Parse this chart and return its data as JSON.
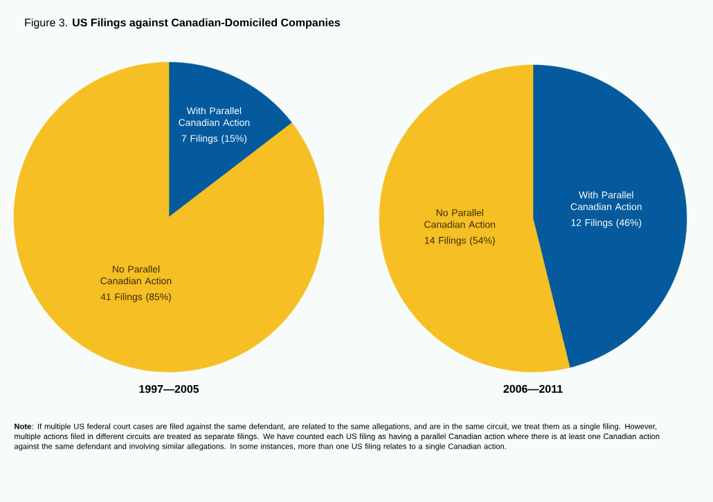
{
  "chart_data": [
    {
      "type": "pie",
      "title": "Figure 3.  **US Filings against Canadian-Domiciled Companies**",
      "xlabel": "1997—2005",
      "categories": [
        "With Parallel Canadian Action",
        "No Parallel Canadian Action"
      ],
      "values": [
        7,
        41
      ],
      "value_labels": [
        "7 Filings (15%)",
        "41 Filings (85%)"
      ],
      "colors": [
        "#045a9c",
        "#f6bf23"
      ],
      "annotations": [
        "**Note**: If multiple US federal court cases are filed against the same defendant, are related to the same allegations, and are in the same circuit, we treat them as a single filing. However, multiple actions filed in different circuits are treated as separate filings. We have counted each US filing as having a parallel Canadian action where there is at least one Canadian action against the same defendant and involving similar allegations. In some instances, more than one US filing relates to a single Canadian action."
      ]
    },
    {
      "type": "pie",
      "xlabel": "2006—2011",
      "categories": [
        "With Parallel Canadian Action",
        "No Parallel Canadian Action"
      ],
      "values": [
        12,
        14
      ],
      "value_labels": [
        "12 Filings (46%)",
        "14 Filings (54%)"
      ],
      "colors": [
        "#045a9c",
        "#f6bf23"
      ]
    }
  ]
}
